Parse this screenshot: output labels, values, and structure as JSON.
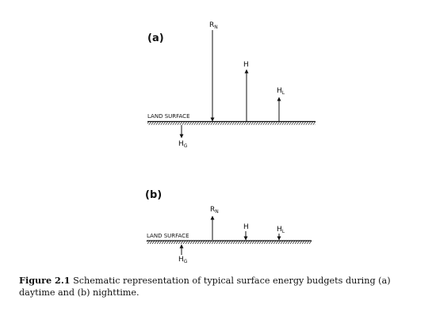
{
  "panels": [
    {
      "label": "(a)",
      "surface_label": "LAND SURFACE",
      "fluxes": [
        {
          "main": "R",
          "sub": "N"
        },
        {
          "main": "H",
          "sub": ""
        },
        {
          "main": "H",
          "sub": "L"
        },
        {
          "main": "H",
          "sub": "G"
        }
      ]
    },
    {
      "label": "(b)",
      "surface_label": "LAND SURFACE",
      "fluxes": [
        {
          "main": "R",
          "sub": "N"
        },
        {
          "main": "H",
          "sub": ""
        },
        {
          "main": "H",
          "sub": "L"
        },
        {
          "main": "H",
          "sub": "G"
        }
      ]
    }
  ],
  "caption": {
    "number": "Figure 2.1",
    "text": "Schematic representation of typical surface energy budgets during (a) daytime and (b) nighttime."
  }
}
